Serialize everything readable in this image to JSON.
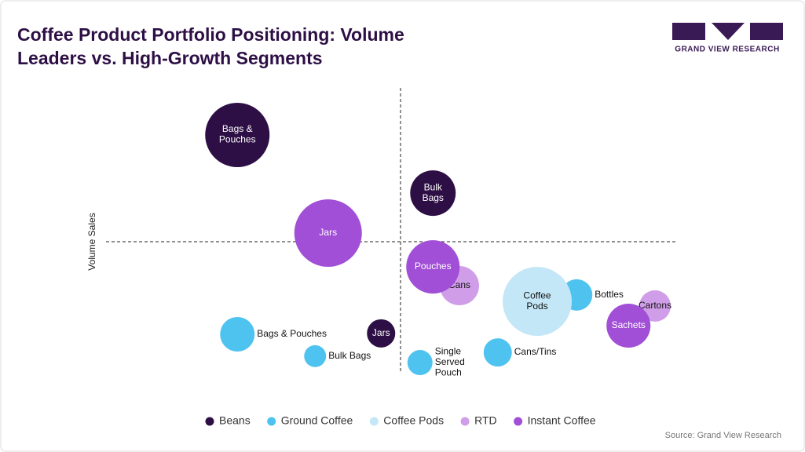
{
  "chart_data": {
    "type": "bubble",
    "title": [
      "Coffee Product Portfolio Positioning: Volume",
      "Leaders vs. High-Growth Segments"
    ],
    "y_label": "Volume Sales",
    "xlim": [
      0,
      100
    ],
    "ylim": [
      0,
      100
    ],
    "reference_lines": {
      "x": 50,
      "y": 50
    },
    "series": [
      {
        "name": "Beans",
        "color": "#2d0f45",
        "labels": [
          [
            "Bags &",
            "Pouches"
          ],
          [
            "Bulk",
            "Bags"
          ],
          [
            "Jars"
          ]
        ],
        "x": [
          22.3,
          55.5,
          46.7
        ],
        "values": [
          84.7,
          65.8,
          20.2
        ],
        "sizes": [
          41,
          29,
          18
        ]
      },
      {
        "name": "Ground Coffee",
        "color": "#4fc3f0",
        "labels": [
          [
            "Bags & Pouches"
          ],
          [
            "Bulk Bags"
          ],
          [
            "Single",
            "Served",
            "Pouch"
          ],
          [
            "Cans/Tins"
          ],
          [
            "Bottles"
          ]
        ],
        "x": [
          22.3,
          35.5,
          53.3,
          66.5,
          79.9
        ],
        "values": [
          19.9,
          12.8,
          10.7,
          14.0,
          32.7
        ],
        "sizes": [
          22,
          14,
          16,
          18,
          20
        ]
      },
      {
        "name": "Coffee Pods",
        "color": "#c4e7f7",
        "labels": [
          [
            "Coffee",
            "Pods"
          ]
        ],
        "x": [
          73.2
        ],
        "values": [
          30.6
        ],
        "sizes": [
          44
        ]
      },
      {
        "name": "RTD",
        "color": "#d09ee8",
        "labels": [
          [
            "Cans"
          ],
          [
            "Cartons"
          ]
        ],
        "x": [
          60.0,
          93.2
        ],
        "values": [
          35.7,
          29.1
        ],
        "sizes": [
          25,
          20
        ]
      },
      {
        "name": "Instant Coffee",
        "color": "#a14fd6",
        "labels": [
          [
            "Jars"
          ],
          [
            "Pouches"
          ],
          [
            "Sachets"
          ]
        ],
        "x": [
          37.7,
          55.5,
          88.7
        ],
        "values": [
          52.8,
          41.8,
          22.7
        ],
        "sizes": [
          43,
          34,
          28
        ]
      }
    ]
  },
  "logo": "GRAND VIEW RESEARCH",
  "source": "Source: Grand View Research"
}
